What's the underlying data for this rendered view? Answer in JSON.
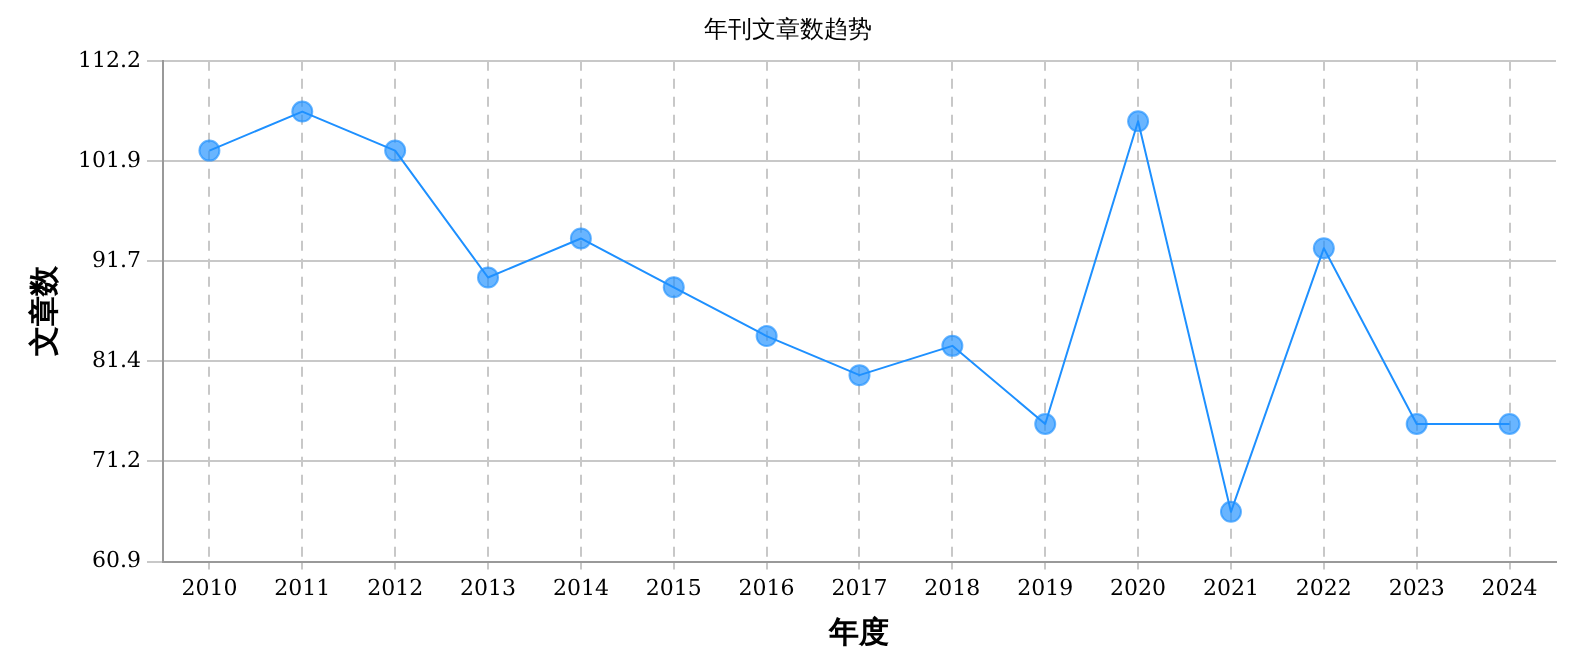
{
  "chart_data": {
    "type": "line",
    "title": "年刊文章数趋势",
    "xlabel": "年度",
    "ylabel": "文章数",
    "categories": [
      "2010",
      "2011",
      "2012",
      "2013",
      "2014",
      "2015",
      "2016",
      "2017",
      "2018",
      "2019",
      "2020",
      "2021",
      "2022",
      "2023",
      "2024"
    ],
    "series": [
      {
        "color": "#1e90ff",
        "values": [
          103,
          107,
          103,
          90,
          94,
          89,
          84,
          80,
          83,
          75,
          106,
          66,
          93,
          75,
          75
        ]
      }
    ],
    "ylim": [
      60.9,
      112.2
    ],
    "yticks": [
      60.9,
      71.2,
      81.4,
      91.7,
      101.9,
      112.2
    ],
    "grid": true,
    "marker": "circle",
    "line_style": "solid",
    "legend": false
  }
}
